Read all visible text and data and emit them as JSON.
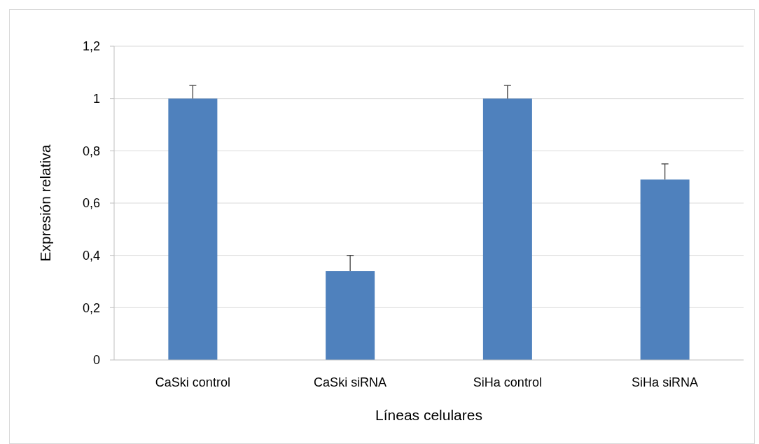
{
  "chart_data": {
    "type": "bar",
    "xlabel": "Líneas celulares",
    "ylabel": "Expresión relativa",
    "categories": [
      "CaSki control",
      "CaSki siRNA",
      "SiHa control",
      "SiHa siRNA"
    ],
    "values": [
      1,
      0.34,
      1,
      0.69
    ],
    "errors": [
      [
        1,
        1.05
      ],
      [
        0.34,
        0.4
      ],
      [
        1,
        1.05
      ],
      [
        0.69,
        0.75
      ]
    ],
    "color": "#4f81bd",
    "ylim": [
      0,
      1.2
    ],
    "yticks": [
      0,
      {
        "value": 0.2,
        "label": "0,2"
      },
      {
        "value": 0.4,
        "label": "0,4"
      },
      {
        "value": 0.6,
        "label": "0,6"
      },
      {
        "value": 0.8,
        "label": "0,8"
      },
      1,
      {
        "value": 1.2,
        "label": "1,2"
      }
    ],
    "grid": "y"
  }
}
